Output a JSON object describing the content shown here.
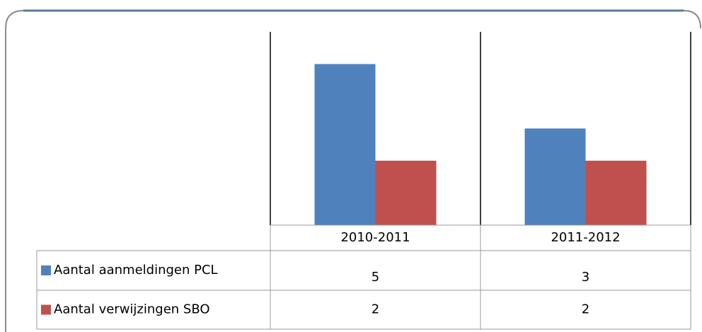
{
  "chart_data": {
    "type": "bar",
    "categories": [
      "2010-2011",
      "2011-2012"
    ],
    "series": [
      {
        "name": "Aantal aanmeldingen PCL",
        "color": "#4f81bd",
        "values": [
          5,
          3
        ]
      },
      {
        "name": "Aantal verwijzingen SBO",
        "color": "#c0504d",
        "values": [
          2,
          2
        ]
      }
    ],
    "ylim": [
      0,
      6
    ]
  }
}
